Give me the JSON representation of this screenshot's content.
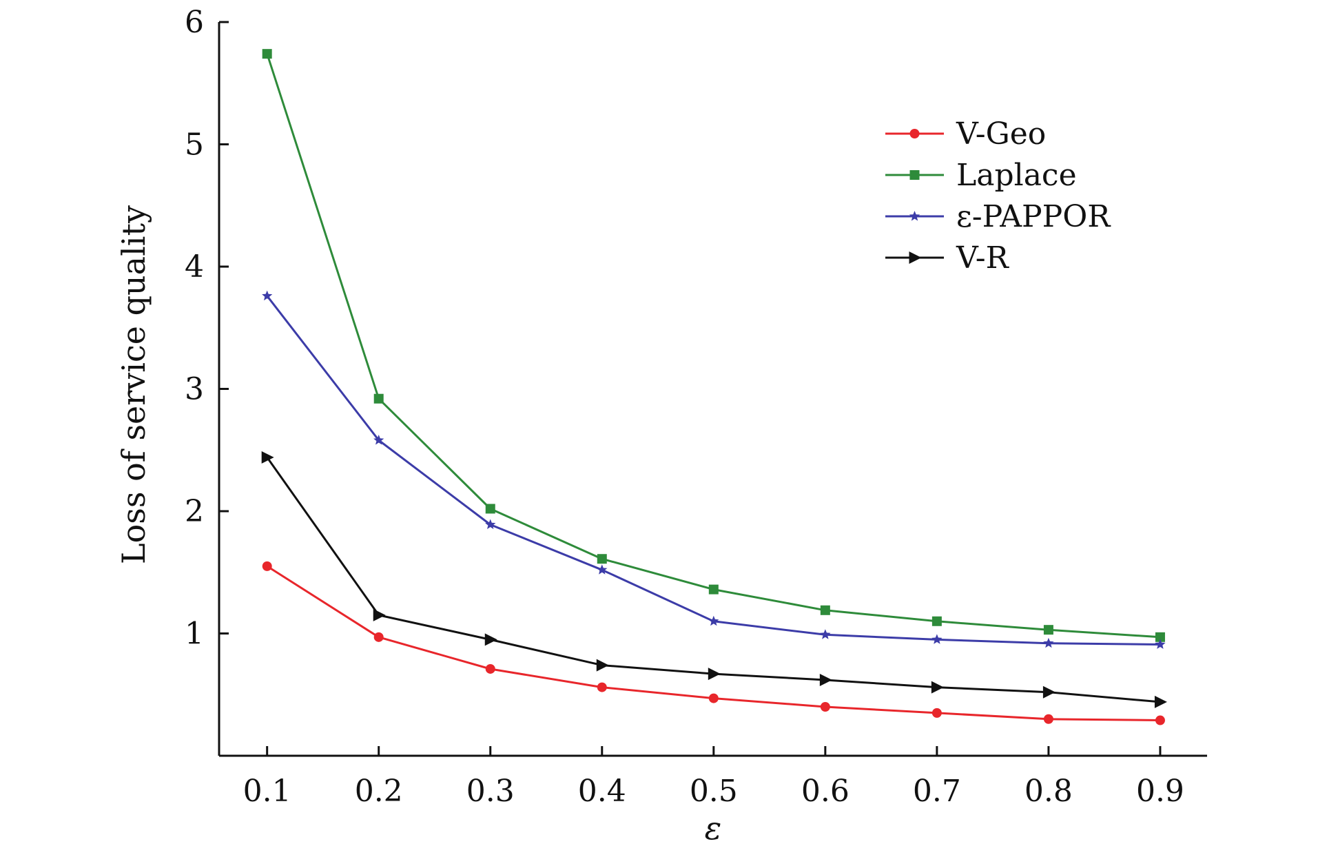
{
  "chart_data": {
    "type": "line",
    "title": "",
    "xlabel": "ε",
    "ylabel": "Loss of service quality",
    "x": [
      0.1,
      0.2,
      0.3,
      0.4,
      0.5,
      0.6,
      0.7,
      0.8,
      0.9
    ],
    "x_tick_labels": [
      "0.1",
      "0.2",
      "0.3",
      "0.4",
      "0.5",
      "0.6",
      "0.7",
      "0.8",
      "0.9"
    ],
    "xlim": [
      0.057,
      0.942
    ],
    "ylim": [
      0,
      6
    ],
    "y_ticks": [
      1,
      2,
      3,
      4,
      5,
      6
    ],
    "grid": false,
    "legend_position": "top-right",
    "series": [
      {
        "name": "V-Geo",
        "color": "#e8262b",
        "marker": "circle",
        "values": [
          1.55,
          0.97,
          0.71,
          0.56,
          0.47,
          0.4,
          0.35,
          0.3,
          0.29
        ]
      },
      {
        "name": "Laplace",
        "color": "#2e8b3a",
        "marker": "square",
        "values": [
          5.74,
          2.92,
          2.02,
          1.61,
          1.36,
          1.19,
          1.1,
          1.03,
          0.97
        ]
      },
      {
        "name": "ε-PAPPOR",
        "color": "#3c3ca8",
        "marker": "star",
        "values": [
          3.76,
          2.58,
          1.89,
          1.52,
          1.1,
          0.99,
          0.95,
          0.92,
          0.91
        ]
      },
      {
        "name": "V-R",
        "color": "#111111",
        "marker": "triangle-right",
        "values": [
          2.44,
          1.15,
          0.95,
          0.74,
          0.67,
          0.62,
          0.56,
          0.52,
          0.44
        ]
      }
    ]
  }
}
